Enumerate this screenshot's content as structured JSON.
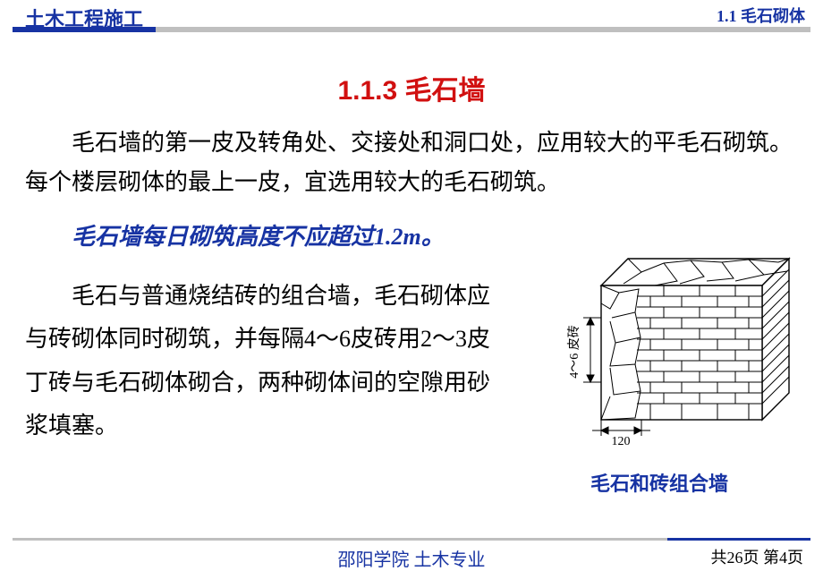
{
  "header": {
    "title": "土木工程施工",
    "title_color": "#1733a3",
    "title_fontsize": 22,
    "section_number": "1.1 毛石砌体",
    "section_color": "#1733a3",
    "section_fontsize": 18,
    "rule_blue": "#1733a3",
    "rule_gray": "#bfbfbf",
    "rule_blue_width": 160
  },
  "body": {
    "section_title": "1.1.3  毛石墙",
    "section_title_color": "#d11010",
    "section_title_fontsize": 30,
    "para1": "毛石墙的第一皮及转角处、交接处和洞口处，应用较大的平毛石砌筑。每个楼层砌体的最上一皮，宜选用较大的毛石砌筑。",
    "para1_color": "#000000",
    "para1_fontsize": 26,
    "highlight": "毛石墙每日砌筑高度不应超过1.2m。",
    "highlight_color": "#1733a3",
    "highlight_fontsize": 26,
    "para2": "毛石与普通烧结砖的组合墙，毛石砌体应与砖砌体同时砌筑，并每隔4～6皮砖用2～3皮丁砖与毛石砌体砌合，两种砌体间的空隙用砂浆填塞。",
    "para2_color": "#000000",
    "para2_fontsize": 26
  },
  "figure": {
    "caption": "毛石和砖组合墙",
    "caption_color": "#1733a3",
    "caption_fontsize": 22,
    "dim_side": "4～6 皮砖",
    "dim_bottom": "120",
    "stroke": "#000000",
    "fill": "#ffffff"
  },
  "footer": {
    "center": "邵阳学院 土木专业",
    "center_color": "#1733a3",
    "center_fontsize": 20,
    "right": "共26页  第4页",
    "right_color": "#000000",
    "right_fontsize": 18,
    "rule_blue_width": 160
  }
}
